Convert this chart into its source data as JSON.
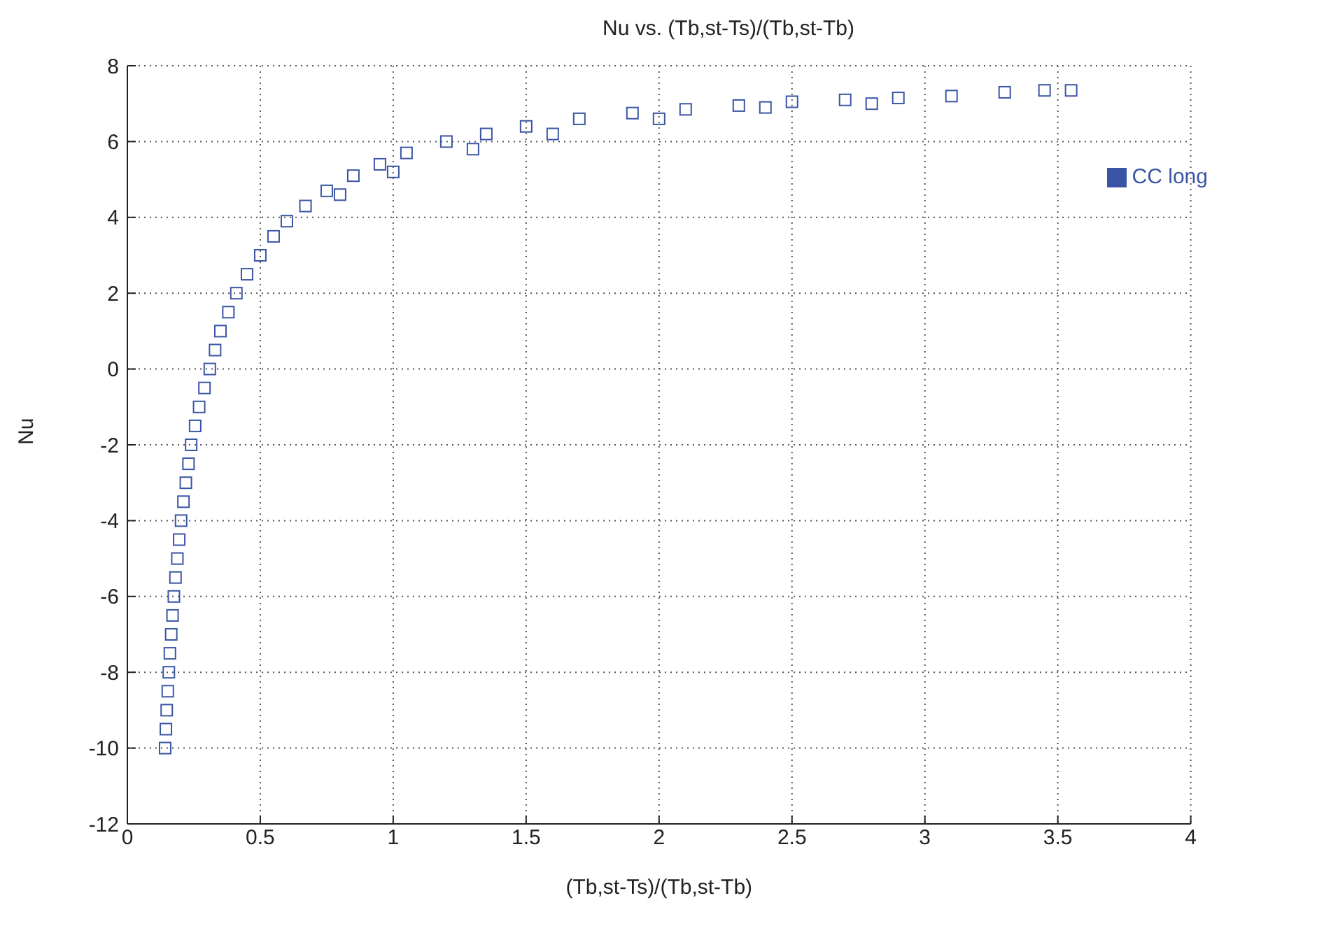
{
  "chart_data": {
    "type": "scatter",
    "title": "Nu vs. (Tb,st-Ts)/(Tb,st-Tb)",
    "xlabel": "(Tb,st-Ts)/(Tb,st-Tb)",
    "ylabel": "Nu",
    "xlim": [
      0,
      4
    ],
    "xticks": [
      0,
      0.5,
      1,
      1.5,
      2,
      2.5,
      3,
      3.5,
      4
    ],
    "ylim": [
      -12,
      8
    ],
    "yticks": [
      -12,
      -10,
      -8,
      -6,
      -4,
      -2,
      0,
      2,
      4,
      6,
      8
    ],
    "grid": true,
    "legend": "top right",
    "marker": "square",
    "series": [
      {
        "name": "CC long",
        "color": "#3a55a4",
        "x": [
          0.142,
          0.145,
          0.148,
          0.152,
          0.156,
          0.16,
          0.165,
          0.17,
          0.175,
          0.181,
          0.188,
          0.195,
          0.202,
          0.211,
          0.22,
          0.23,
          0.24,
          0.255,
          0.27,
          0.29,
          0.31,
          0.33,
          0.35,
          0.38,
          0.41,
          0.45,
          0.5,
          0.55,
          0.6,
          0.67,
          0.75,
          0.85,
          0.95,
          1.05,
          1.2,
          1.35,
          1.5,
          1.7,
          1.9,
          2.1,
          2.3,
          2.5,
          2.7,
          2.9,
          3.1,
          3.3,
          3.45,
          3.55,
          0.8,
          1,
          1.3,
          1.6,
          2,
          2.4,
          2.8
        ],
        "values": [
          -10,
          -9.5,
          -9,
          -8.5,
          -8,
          -7.5,
          -7,
          -6.5,
          -6,
          -5.5,
          -5,
          -4.5,
          -4,
          -3.5,
          -3,
          -2.5,
          -2,
          -1.5,
          -1,
          -0.5,
          0,
          0.5,
          1,
          1.5,
          2,
          2.5,
          3,
          3.5,
          3.9,
          4.3,
          4.7,
          5.1,
          5.4,
          5.7,
          6,
          6.2,
          6.4,
          6.6,
          6.75,
          6.85,
          6.95,
          7.05,
          7.1,
          7.15,
          7.2,
          7.3,
          7.35,
          7.35,
          4.6,
          5.2,
          5.8,
          6.2,
          6.6,
          6.9,
          7
        ]
      }
    ]
  }
}
